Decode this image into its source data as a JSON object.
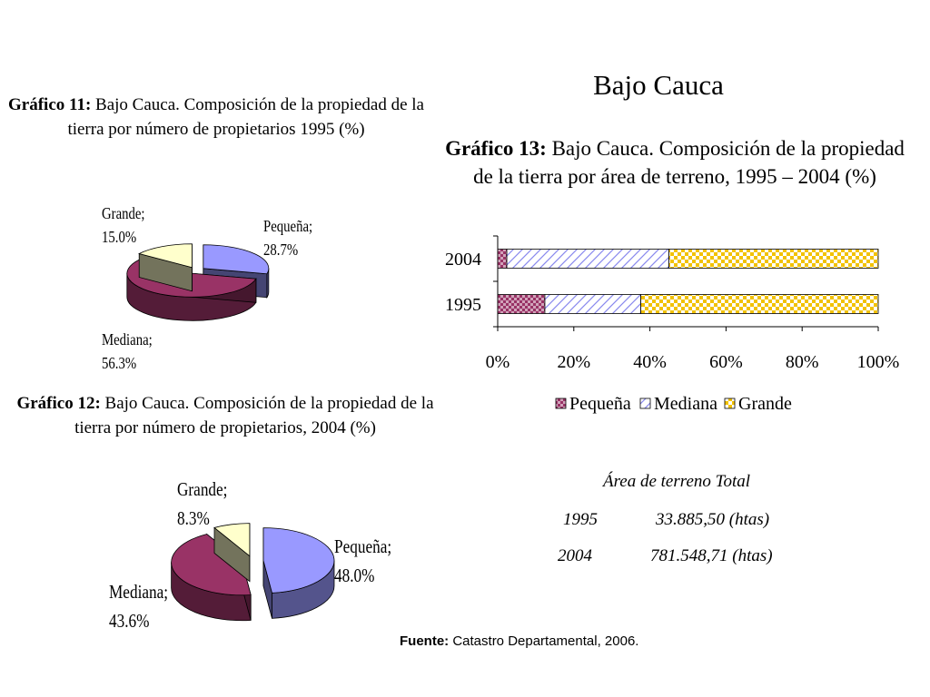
{
  "page": {
    "title": "Bajo Cauca"
  },
  "chart11": {
    "caption_bold": "Gráfico 11:",
    "caption_rest": " Bajo Cauca. Composición de la propiedad de la tierra por número de propietarios 1995 (%)"
  },
  "chart12": {
    "caption_bold": "Gráfico 12:",
    "caption_rest": " Bajo Cauca. Composición de la propiedad de la tierra por número de propietarios, 2004 (%)"
  },
  "chart13": {
    "caption_bold": "Gráfico 13:",
    "caption_rest": " Bajo Cauca. Composición de la propiedad de la tierra por área de terreno, 1995 – 2004 (%)"
  },
  "chart_data": [
    {
      "type": "pie",
      "id": "grafico-11",
      "title": "Gráfico 11: Bajo Cauca. Composición de la propiedad de la tierra por número de propietarios 1995 (%)",
      "categories": [
        "Pequeña",
        "Mediana",
        "Grande"
      ],
      "values": [
        28.7,
        56.3,
        15.0
      ],
      "labels": [
        "Pequeña;\n28.7%",
        "Mediana;\n56.3%",
        "Grande;\n15.0%"
      ],
      "colors": [
        "#9999ff",
        "#993366",
        "#ffffcc"
      ]
    },
    {
      "type": "pie",
      "id": "grafico-12",
      "title": "Gráfico 12: Bajo Cauca. Composición de la propiedad de la tierra por número de propietarios, 2004 (%)",
      "categories": [
        "Pequeña",
        "Mediana",
        "Grande"
      ],
      "values": [
        48.0,
        43.6,
        8.3
      ],
      "labels": [
        "Pequeña;\n48.0%",
        "Mediana;\n43.6%",
        "Grande;\n8.3%"
      ],
      "colors": [
        "#9999ff",
        "#993366",
        "#ffffcc"
      ]
    },
    {
      "type": "bar",
      "id": "grafico-13",
      "orientation": "horizontal",
      "stacked": "percent",
      "title": "Gráfico 13: Bajo Cauca. Composición de la propiedad de la tierra por área de terreno, 1995 – 2004 (%)",
      "categories": [
        "2004",
        "1995"
      ],
      "series": [
        {
          "name": "Pequeña",
          "values": [
            2.4,
            12.4
          ],
          "color": "#993366"
        },
        {
          "name": "Mediana",
          "values": [
            42.6,
            25.2
          ],
          "color": "#9999ff"
        },
        {
          "name": "Grande",
          "values": [
            55.0,
            62.4
          ],
          "color": "#ffcc00"
        }
      ],
      "x_ticks": [
        "0%",
        "20%",
        "40%",
        "60%",
        "80%",
        "100%"
      ],
      "xlim": [
        0,
        100
      ],
      "legend": {
        "position": "bottom",
        "entries": [
          "Pequeña",
          "Mediana",
          "Grande"
        ]
      }
    }
  ],
  "area_total": {
    "title": "Área de terreno Total",
    "rows": [
      {
        "year": "1995",
        "value": "33.885,50 (htas)"
      },
      {
        "year": "2004",
        "value": "781.548,71 (htas)"
      }
    ]
  },
  "footer": {
    "bold": "Fuente:",
    "text": " Catastro Departamental, 2006."
  }
}
